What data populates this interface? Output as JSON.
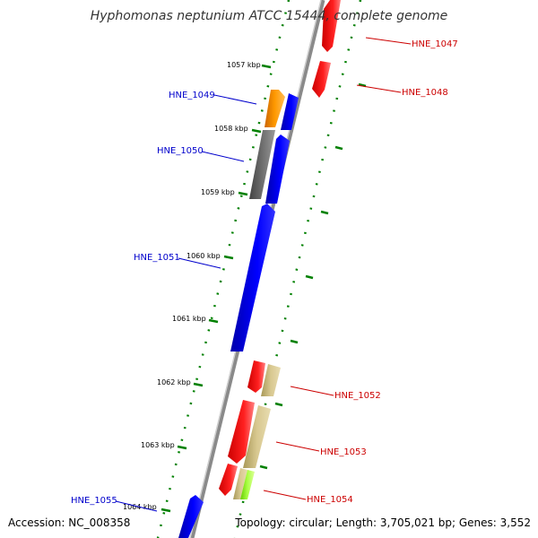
{
  "title": "Hyphomonas neptunium ATCC 15444, complete genome",
  "accession": "Accession: NC_008358",
  "topology": "Topology: circular; Length: 3,705,021 bp; Genes: 3,552",
  "kbp_labels": [
    "1057 kbp",
    "1058 kbp",
    "1059 kbp",
    "1060 kbp",
    "1061 kbp",
    "1062 kbp",
    "1063 kbp",
    "1064 kbp"
  ],
  "genes": [
    {
      "id": "HNE_1047",
      "color": "#ff0000",
      "strand": "reverse"
    },
    {
      "id": "HNE_1048",
      "color": "#ff0000",
      "strand": "reverse"
    },
    {
      "id": "HNE_1049",
      "color": "#0000cc",
      "strand": "forward"
    },
    {
      "id": "HNE_1050",
      "color": "#0000cc",
      "strand": "forward"
    },
    {
      "id": "HNE_1051",
      "color": "#0000cc",
      "strand": "forward"
    },
    {
      "id": "HNE_1052",
      "color": "#ff0000",
      "strand": "reverse"
    },
    {
      "id": "HNE_1053",
      "color": "#ff0000",
      "strand": "reverse"
    },
    {
      "id": "HNE_1054",
      "color": "#ff0000",
      "strand": "reverse"
    },
    {
      "id": "HNE_1055",
      "color": "#0000cc",
      "strand": "forward"
    }
  ],
  "colors": {
    "forward_cds": "#0000ff",
    "reverse_cds": "#ff0000",
    "orange_feature": "#ff8c00",
    "gray_feature": "#666666",
    "khaki_feature": "#c8b878",
    "lime_feature": "#99ff33",
    "tick_green": "#008000",
    "backbone": "#8a8a8a"
  }
}
